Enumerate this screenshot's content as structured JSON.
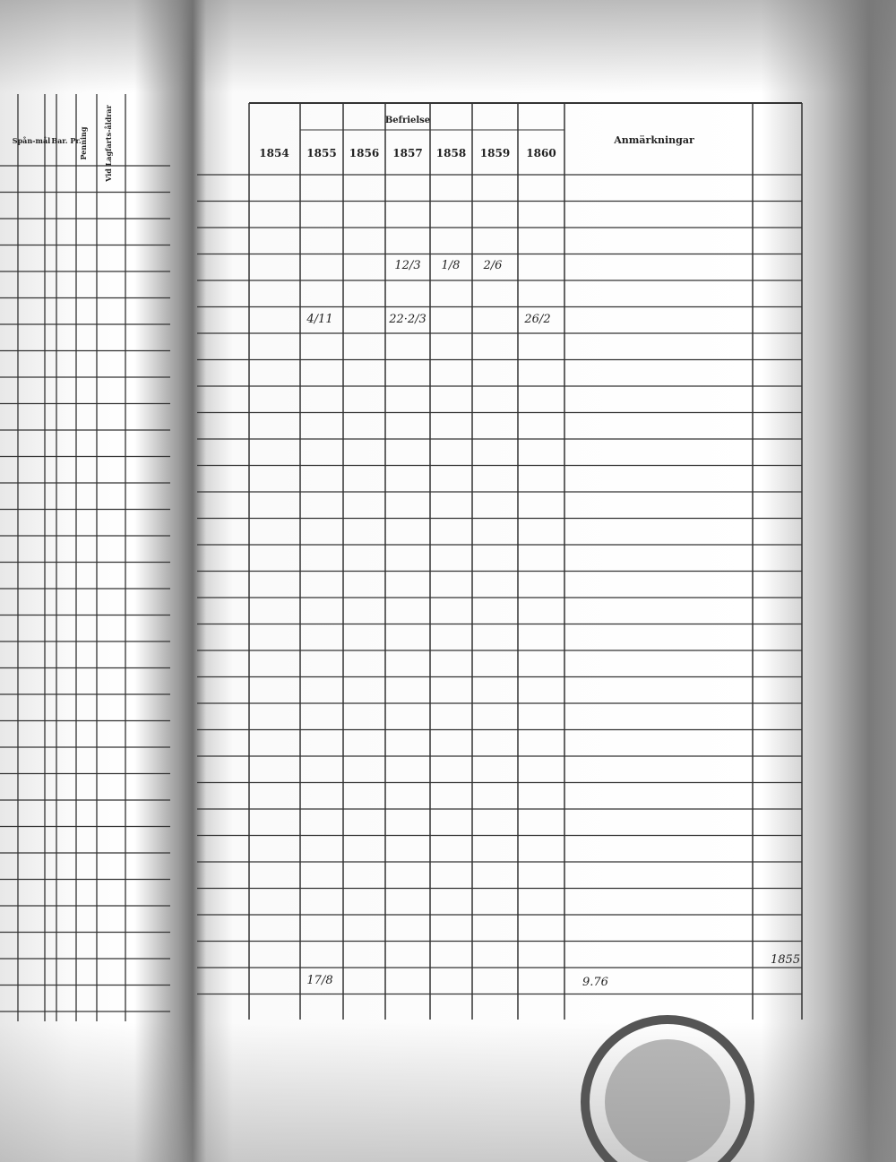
{
  "left_page": {
    "headers": [
      "Spån-mål",
      "Bar. Pr.",
      "Penning",
      "Vid Lagfarts-åldrar"
    ]
  },
  "right_page": {
    "group_label": "Befrielse",
    "years": [
      "1854",
      "1855",
      "1856",
      "1857",
      "1858",
      "1859",
      "1860"
    ],
    "remarks": "Anmärkningar"
  },
  "entries": {
    "row_1": [
      "12/3",
      "1/8",
      "2/6"
    ],
    "row_2": [
      "4/11",
      "22·2/3",
      "26/2"
    ],
    "bottom_left": "17/8",
    "bottom_remark": "9.76",
    "margin_note": "1855"
  }
}
